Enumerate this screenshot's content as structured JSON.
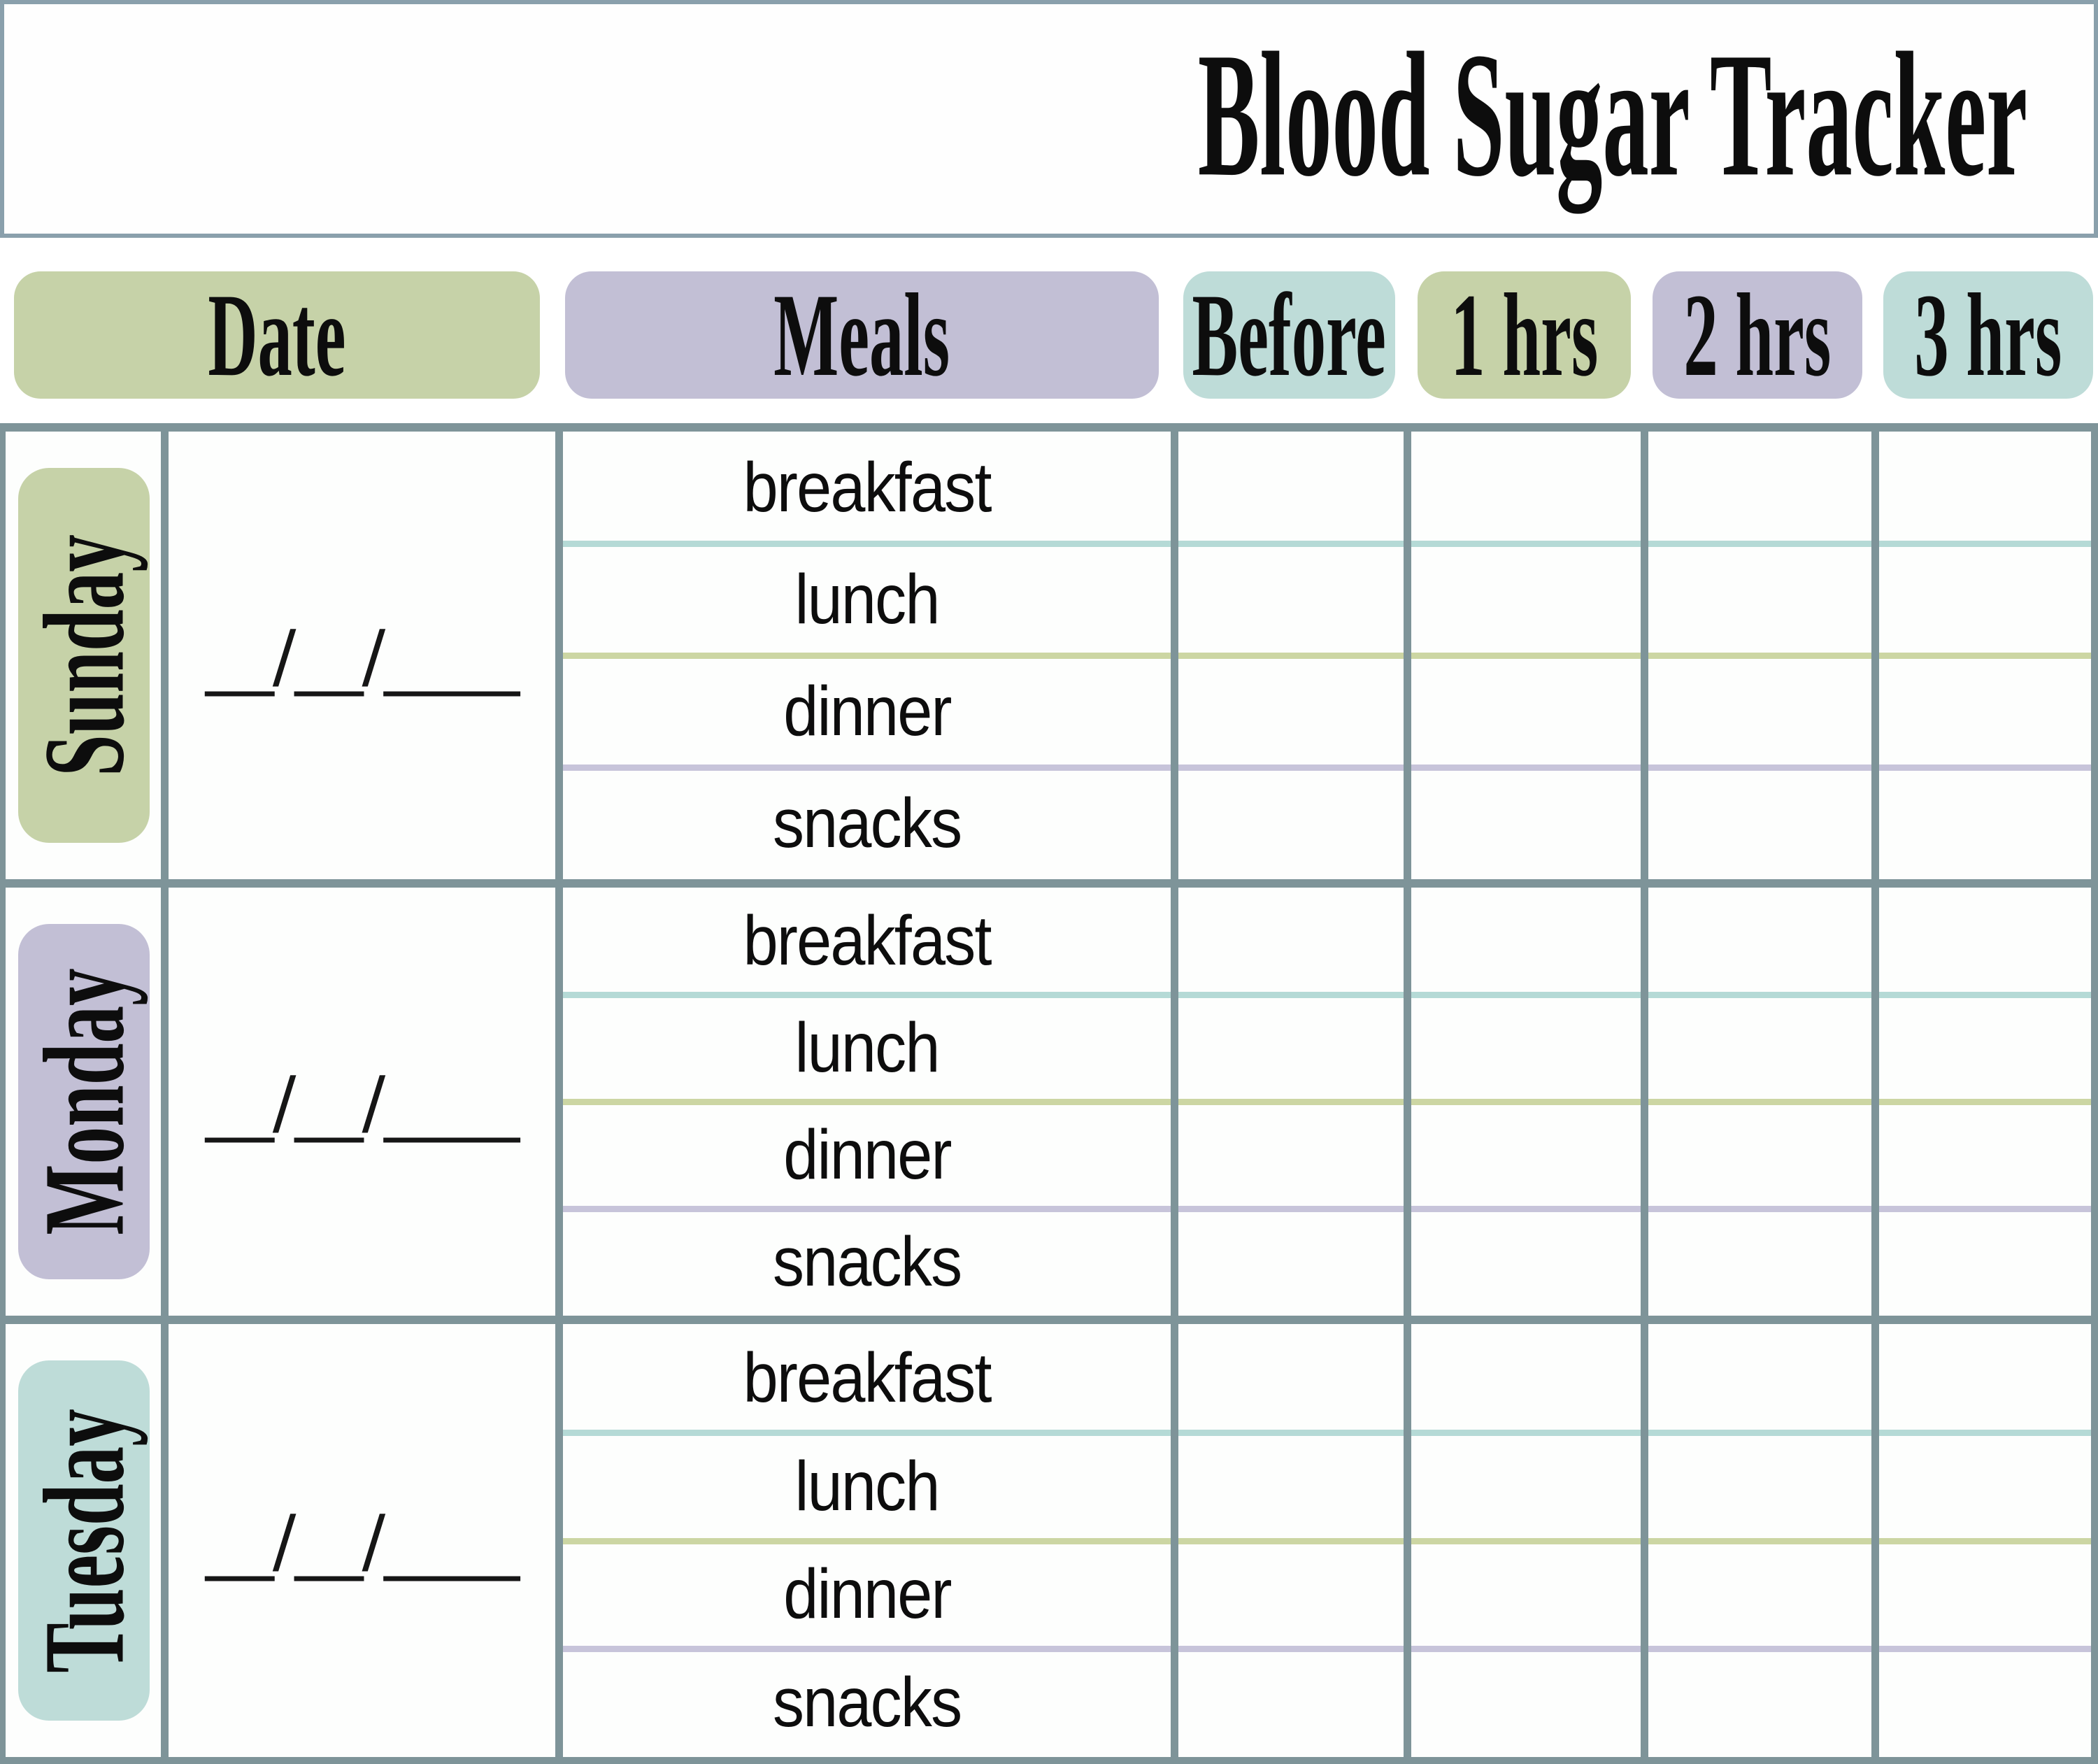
{
  "title": "Blood Sugar Tracker",
  "header_columns": [
    {
      "id": "date",
      "label": "Date",
      "color": "#c6d2a8"
    },
    {
      "id": "meals",
      "label": "Meals",
      "color": "#c2bfd5"
    },
    {
      "id": "before",
      "label": "Before",
      "color": "#bedcd8"
    },
    {
      "id": "1hrs",
      "label": "1 hrs",
      "color": "#c6d2a8"
    },
    {
      "id": "2hrs",
      "label": "2 hrs",
      "color": "#c2bfd5"
    },
    {
      "id": "3hrs",
      "label": "3 hrs",
      "color": "#bedcd8"
    }
  ],
  "days": [
    {
      "label": "Sunday",
      "date_placeholder": "__/__/____",
      "badge_color": "#c6d2a8"
    },
    {
      "label": "Monday",
      "date_placeholder": "__/__/____",
      "badge_color": "#c2bfd5"
    },
    {
      "label": "Tuesday",
      "date_placeholder": "__/__/____",
      "badge_color": "#bedcd8"
    }
  ],
  "meal_rows": [
    "breakfast",
    "lunch",
    "dinner",
    "snacks"
  ],
  "colors": {
    "grid_line": "#7e9499",
    "title_border": "#8aa0ac",
    "row_line_teal": "#b5dad6",
    "row_line_green": "#ccd6a3",
    "row_line_purple": "#c7c4da",
    "badge_green": "#c6d2a8",
    "badge_purple": "#c2bfd5",
    "badge_teal": "#bedcd8"
  }
}
